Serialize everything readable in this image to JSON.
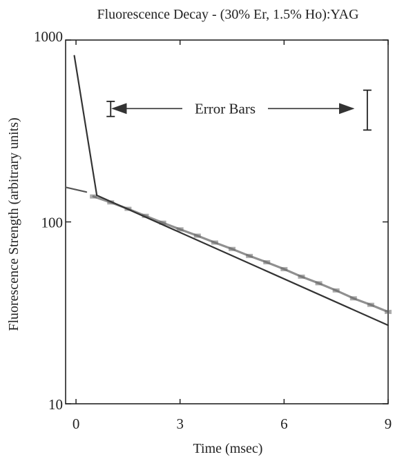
{
  "chart_data": {
    "type": "line",
    "title": "Fluorescence Decay - (30% Er, 1.5% Ho):YAG",
    "xlabel": "Time (msec)",
    "ylabel": "Fluorescence Strength (arbitrary units)",
    "xlim": [
      -0.3,
      9
    ],
    "ylim": [
      10,
      1000
    ],
    "y_scale": "log",
    "x_ticks": [
      0,
      3,
      6,
      9
    ],
    "x_tick_labels": [
      "0",
      "3",
      "6",
      "9"
    ],
    "y_ticks": [
      10,
      100,
      1000
    ],
    "y_tick_labels": [
      "10",
      "100",
      "1000"
    ],
    "grid": false,
    "legend": "none",
    "series": [
      {
        "role": "measured",
        "color": "#555555",
        "x": [
          0.5,
          1.0,
          1.5,
          2.0,
          2.5,
          3.0,
          3.5,
          4.0,
          4.5,
          5.0,
          5.5,
          6.0,
          6.5,
          7.0,
          7.5,
          8.0,
          8.5,
          9.0
        ],
        "y": [
          138,
          128,
          118,
          108,
          99,
          91,
          84,
          77,
          71,
          65,
          60,
          55,
          50,
          46,
          42,
          38,
          35,
          32
        ]
      },
      {
        "role": "fit-fast",
        "color": "#333333",
        "x": [
          -0.05,
          0.6
        ],
        "y": [
          820,
          140
        ]
      },
      {
        "role": "fit-slow",
        "color": "#333333",
        "x": [
          0.6,
          9.0
        ],
        "y": [
          140,
          27
        ]
      },
      {
        "role": "initial-segment",
        "color": "#555555",
        "x": [
          -0.3,
          0.3
        ],
        "y": [
          155,
          146
        ]
      }
    ],
    "annotations": [
      {
        "text": "Error Bars",
        "x": 4.3,
        "y": 420,
        "arrow_left_to_x": 1.05,
        "arrow_right_to_x": 8.0,
        "error_bars": [
          {
            "x": 1.0,
            "y": 420,
            "low": 380,
            "high": 460
          },
          {
            "x": 8.4,
            "y": 420,
            "low": 320,
            "high": 530
          }
        ]
      }
    ]
  }
}
